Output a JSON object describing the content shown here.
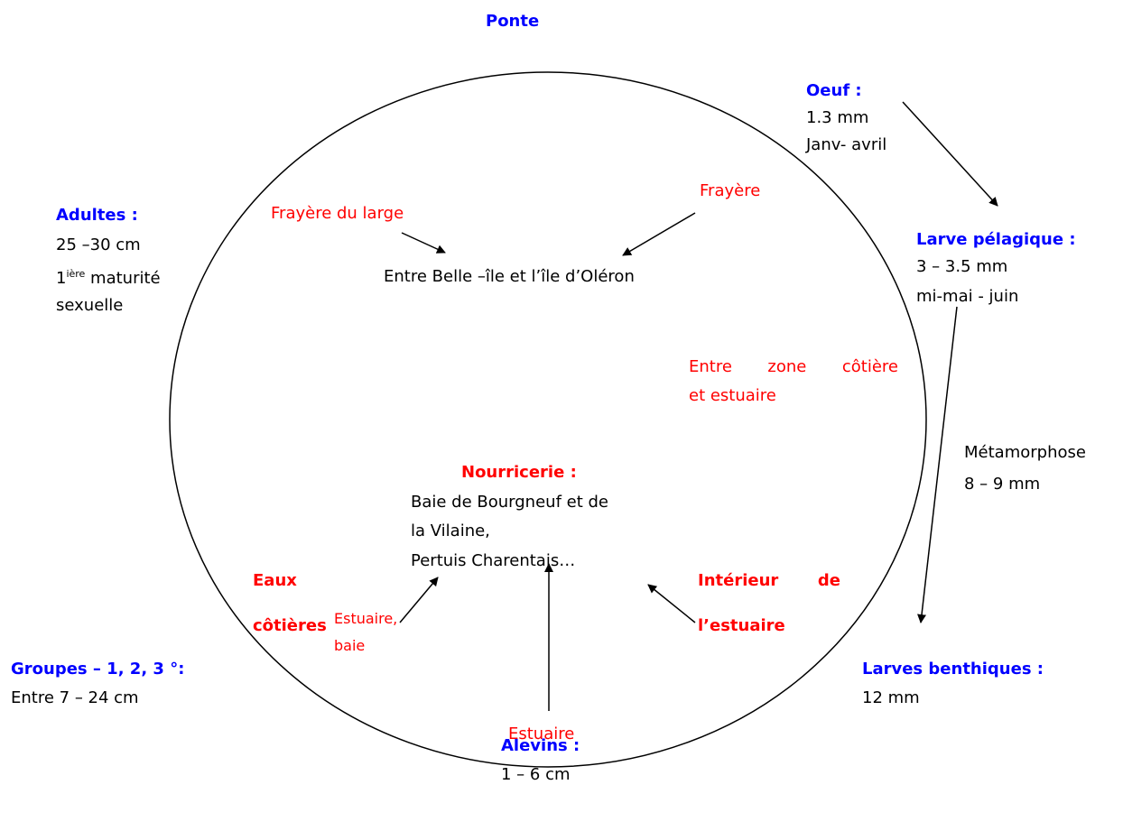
{
  "ponte": "Ponte",
  "oeuf": {
    "title": "Oeuf :",
    "lines": [
      "1.3 mm",
      "Janv- avril"
    ]
  },
  "larve_pelagique": {
    "title": "Larve pélagique :",
    "lines": [
      "3 – 3.5 mm",
      "mi-mai - juin"
    ]
  },
  "metamorphose": {
    "lines": [
      "Métamorphose",
      "8 – 9 mm"
    ]
  },
  "larves_benthiques": {
    "title": "Larves benthiques :",
    "lines": [
      "12 mm"
    ]
  },
  "alevins": {
    "title": "Alevins :",
    "lines": [
      "1 – 6 cm"
    ]
  },
  "groupes": {
    "title": "Groupes – 1, 2, 3 °:",
    "lines": [
      "Entre 7 – 24 cm"
    ]
  },
  "adultes": {
    "title": "Adultes :",
    "line1": "25 –30 cm",
    "maturity": {
      "number": "1",
      "sup": "ière",
      "text": " maturité"
    },
    "line3": "sexuelle"
  },
  "inside": {
    "frayere_large": "Frayère du large",
    "frayere": "Frayère",
    "location": "Entre Belle –île et l’île d’Oléron",
    "zone": [
      "Entre zone côtière",
      "et estuaire"
    ],
    "nourricerie": {
      "title": "Nourricerie :",
      "lines": [
        "Baie de Bourgneuf et de",
        "la Vilaine,",
        "Pertuis Charentais…"
      ]
    },
    "eaux_cotieres": [
      "Eaux",
      "côtières"
    ],
    "estuaire_baie": [
      "Estuaire,",
      "baie"
    ],
    "interieur": [
      "Intérieur de",
      "l’estuaire"
    ],
    "estuaire": "Estuaire"
  }
}
